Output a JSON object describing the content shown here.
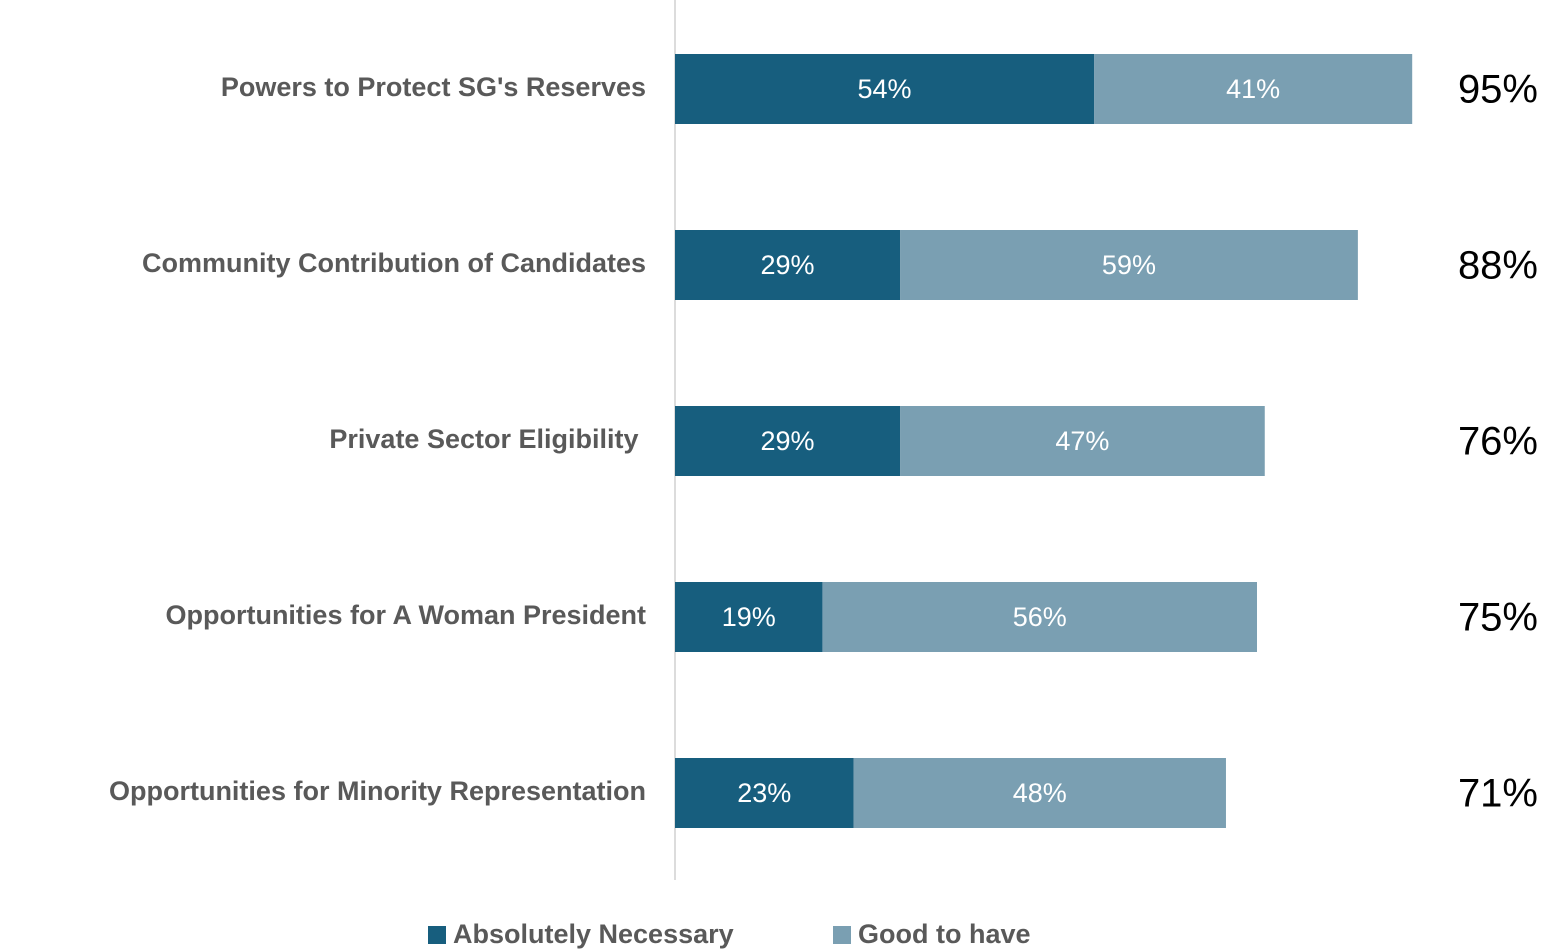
{
  "chart_data": {
    "type": "stacked-bar-horizontal",
    "categories": [
      "Powers to Protect SG's Reserves",
      "Community Contribution of Candidates",
      "Private Sector Eligibility ",
      "Opportunities for A Woman President",
      "Opportunities for Minority Representation"
    ],
    "series": [
      {
        "name": "Absolutely Necessary",
        "color": "#175e7e",
        "values": [
          54,
          29,
          29,
          19,
          23
        ],
        "value_labels": [
          "54%",
          "29%",
          "29%",
          "19%",
          "23%"
        ]
      },
      {
        "name": "Good to have",
        "color": "#7a9fb2",
        "values": [
          41,
          59,
          47,
          56,
          48
        ],
        "value_labels": [
          "41%",
          "59%",
          "47%",
          "56%",
          "48%"
        ]
      }
    ],
    "totals": [
      95,
      88,
      76,
      75,
      71
    ],
    "total_labels": [
      "95%",
      "88%",
      "76%",
      "75%",
      "71%"
    ],
    "xlim": [
      0,
      100
    ],
    "legend": "bottom"
  }
}
